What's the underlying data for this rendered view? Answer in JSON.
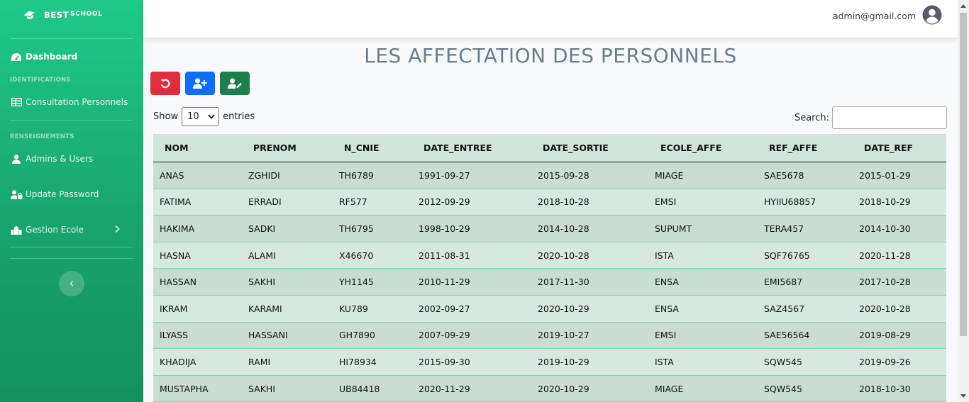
{
  "brand": {
    "name": "BEST",
    "sup": "SCHOOL"
  },
  "sidebar": {
    "dashboard": "Dashboard",
    "heading_identifications": "IDENTIFICATIONS",
    "consultation": "Consultation Personnels",
    "heading_renseignements": "RENSEIGNEMENTS",
    "admins_users": "Admins & Users",
    "update_password": "Update Password",
    "gestion_ecole": "Gestion Ecole"
  },
  "topbar": {
    "email": "admin@gmail.com"
  },
  "page": {
    "title": "LES AFFECTATION DES PERSONNELS"
  },
  "controls": {
    "show_label": "Show",
    "entries_value": "10",
    "entries_label": "entries",
    "search_label": "Search:",
    "search_value": ""
  },
  "colors": {
    "sidebar": "#1cb97d",
    "red_button": "#e02d3c",
    "blue_button": "#0b6efd",
    "green_button": "#1a7f4b",
    "table_header": "#cfe5db"
  },
  "table": {
    "headers": [
      "NOM",
      "PRENOM",
      "N_CNIE",
      "DATE_ENTREE",
      "DATE_SORTIE",
      "ECOLE_AFFE",
      "REF_AFFE",
      "DATE_REF"
    ],
    "rows": [
      [
        "ANAS",
        "ZGHIDI",
        "TH6789",
        "1991-09-27",
        "2015-09-28",
        "MIAGE",
        "SAE5678",
        "2015-01-29"
      ],
      [
        "FATIMA",
        "ERRADI",
        "RF577",
        "2012-09-29",
        "2018-10-28",
        "EMSI",
        "HYIIU68857",
        "2018-10-29"
      ],
      [
        "HAKIMA",
        "SADKI",
        "TH6795",
        "1998-10-29",
        "2014-10-28",
        "SUPUMT",
        "TERA457",
        "2014-10-30"
      ],
      [
        "HASNA",
        "ALAMI",
        "X46670",
        "2011-08-31",
        "2020-10-28",
        "ISTA",
        "SQF76765",
        "2020-11-28"
      ],
      [
        "HASSAN",
        "SAKHI",
        "YH1145",
        "2010-11-29",
        "2017-11-30",
        "ENSA",
        "EMI5687",
        "2017-10-28"
      ],
      [
        "IKRAM",
        "KARAMI",
        "KU789",
        "2002-09-27",
        "2020-10-29",
        "ENSA",
        "SAZ4567",
        "2020-10-28"
      ],
      [
        "ILYASS",
        "HASSANI",
        "GH7890",
        "2007-09-29",
        "2019-10-27",
        "EMSI",
        "SAE56564",
        "2019-08-29"
      ],
      [
        "KHADIJA",
        "RAMI",
        "HI78934",
        "2015-09-30",
        "2019-10-29",
        "ISTA",
        "SQW545",
        "2019-09-26"
      ],
      [
        "MUSTAPHA",
        "SAKHI",
        "UB84418",
        "2020-11-29",
        "2020-10-29",
        "MIAGE",
        "SQW545",
        "2018-10-30"
      ]
    ]
  }
}
